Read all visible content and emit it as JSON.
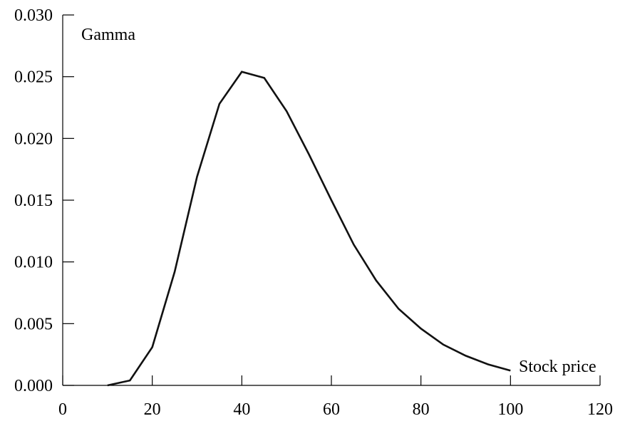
{
  "chart_data": {
    "type": "line",
    "title": "",
    "xlabel": "Stock price",
    "ylabel": "Gamma",
    "xlim": [
      0,
      120
    ],
    "ylim": [
      0,
      0.03
    ],
    "x_ticks": [
      {
        "value": 0,
        "label": "0"
      },
      {
        "value": 20,
        "label": "20"
      },
      {
        "value": 40,
        "label": "40"
      },
      {
        "value": 60,
        "label": "60"
      },
      {
        "value": 80,
        "label": "80"
      },
      {
        "value": 100,
        "label": "100"
      },
      {
        "value": 120,
        "label": "120"
      }
    ],
    "y_ticks": [
      {
        "value": 0.0,
        "label": "0.000"
      },
      {
        "value": 0.005,
        "label": "0.005"
      },
      {
        "value": 0.01,
        "label": "0.010"
      },
      {
        "value": 0.015,
        "label": "0.015"
      },
      {
        "value": 0.02,
        "label": "0.020"
      },
      {
        "value": 0.025,
        "label": "0.025"
      },
      {
        "value": 0.03,
        "label": "0.030"
      }
    ],
    "grid": false,
    "legend": "none",
    "line_color": "#111111",
    "series": [
      {
        "x": [
          10,
          15,
          20,
          25,
          30,
          35,
          40,
          45,
          50,
          55,
          60,
          65,
          70,
          75,
          80,
          85,
          90,
          95,
          100
        ],
        "y": [
          0.0,
          0.0004,
          0.0031,
          0.0092,
          0.0169,
          0.0228,
          0.0254,
          0.0249,
          0.0222,
          0.0187,
          0.015,
          0.0114,
          0.0085,
          0.0062,
          0.0046,
          0.0033,
          0.0024,
          0.0017,
          0.0012
        ]
      }
    ]
  }
}
